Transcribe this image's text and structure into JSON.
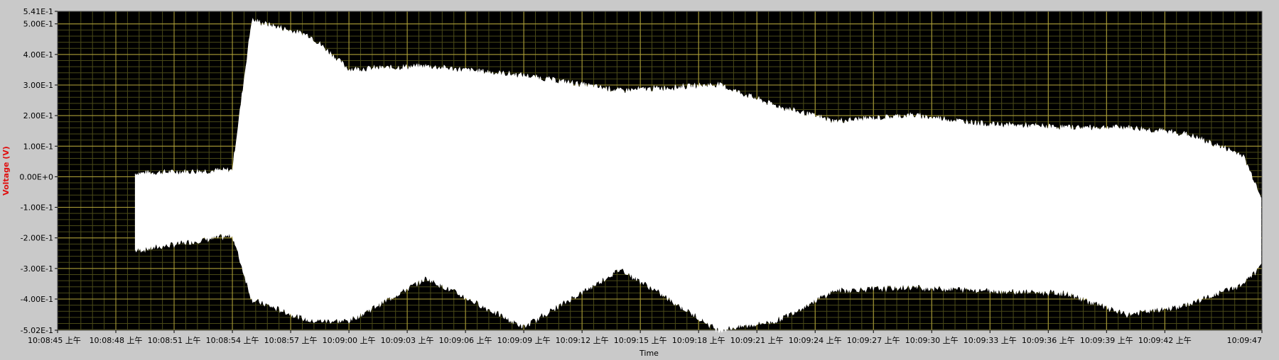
{
  "chart_data": {
    "type": "line",
    "title": "",
    "xlabel": "Time",
    "ylabel": "Voltage (V)",
    "ylim": [
      -0.502,
      0.541
    ],
    "x_range_seconds": [
      "10:08:45",
      "10:09:47"
    ],
    "y_ticks": [
      {
        "value": 0.541,
        "label": "5.41E-1"
      },
      {
        "value": 0.5,
        "label": "5.00E-1"
      },
      {
        "value": 0.4,
        "label": "4.00E-1"
      },
      {
        "value": 0.3,
        "label": "3.00E-1"
      },
      {
        "value": 0.2,
        "label": "2.00E-1"
      },
      {
        "value": 0.1,
        "label": "1.00E-1"
      },
      {
        "value": 0.0,
        "label": "0.00E+0"
      },
      {
        "value": -0.1,
        "label": "-1.00E-1"
      },
      {
        "value": -0.2,
        "label": "-2.00E-1"
      },
      {
        "value": -0.3,
        "label": "-3.00E-1"
      },
      {
        "value": -0.4,
        "label": "-4.00E-1"
      },
      {
        "value": -0.502,
        "label": "-5.02E-1"
      }
    ],
    "x_ticks": [
      "10:08:45 上午",
      "10:08:48 上午",
      "10:08:51 上午",
      "10:08:54 上午",
      "10:08:57 上午",
      "10:09:00 上午",
      "10:09:03 上午",
      "10:09:06 上午",
      "10:09:09 上午",
      "10:09:12 上午",
      "10:09:15 上午",
      "10:09:18 上午",
      "10:09:21 上午",
      "10:09:24 上午",
      "10:09:27 上午",
      "10:09:30 上午",
      "10:09:33 上午",
      "10:09:36 上午",
      "10:09:39 上午",
      "10:09:42 上午",
      "10:09:47"
    ],
    "grid": true,
    "colors": {
      "plot_background": "#000000",
      "signal": "#ffffff",
      "major_grid": "#b3a43a",
      "minor_grid": "#4a4a18",
      "ylabel": "#e01010",
      "frame": "#c9c9c9"
    },
    "series": [
      {
        "envelope": [
          {
            "t": "10:08:49",
            "max": 0.01,
            "min": -0.24
          },
          {
            "t": "10:08:54",
            "max": 0.02,
            "min": -0.19
          },
          {
            "t": "10:08:55",
            "max": 0.51,
            "min": -0.4
          },
          {
            "t": "10:08:58",
            "max": 0.46,
            "min": -0.47
          },
          {
            "t": "10:09:00",
            "max": 0.35,
            "min": -0.47
          },
          {
            "t": "10:09:04",
            "max": 0.36,
            "min": -0.33
          },
          {
            "t": "10:09:09",
            "max": 0.33,
            "min": -0.49
          },
          {
            "t": "10:09:14",
            "max": 0.28,
            "min": -0.3
          },
          {
            "t": "10:09:19",
            "max": 0.3,
            "min": -0.5
          },
          {
            "t": "10:09:22",
            "max": 0.23,
            "min": -0.47
          },
          {
            "t": "10:09:25",
            "max": 0.18,
            "min": -0.37
          },
          {
            "t": "10:09:29",
            "max": 0.2,
            "min": -0.36
          },
          {
            "t": "10:09:33",
            "max": 0.17,
            "min": -0.37
          },
          {
            "t": "10:09:37",
            "max": 0.16,
            "min": -0.38
          },
          {
            "t": "10:09:40",
            "max": 0.16,
            "min": -0.45
          },
          {
            "t": "10:09:43",
            "max": 0.14,
            "min": -0.42
          },
          {
            "t": "10:09:46",
            "max": 0.07,
            "min": -0.35
          },
          {
            "t": "10:09:47",
            "max": -0.07,
            "min": -0.29
          }
        ]
      }
    ]
  }
}
